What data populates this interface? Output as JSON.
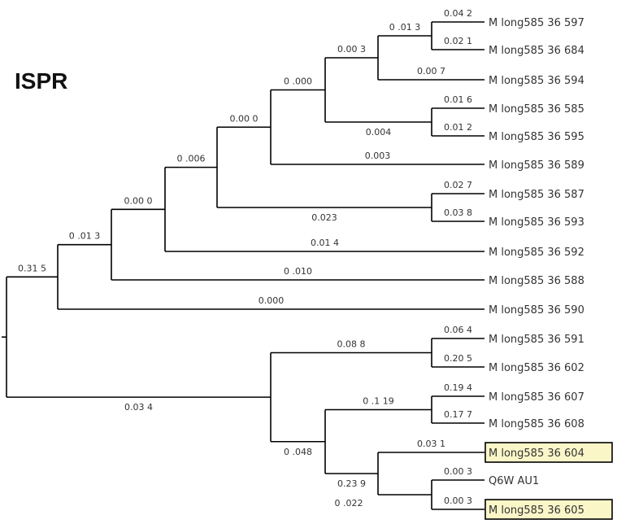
{
  "title": "ISPR",
  "colors": {
    "branch": "#000000",
    "highlight_fill": "#fbf6c8",
    "text": "#333333"
  },
  "leaves": [
    {
      "id": "L1",
      "label": "M long585 36 597"
    },
    {
      "id": "L2",
      "label": "M long585 36 684"
    },
    {
      "id": "L3",
      "label": "M long585 36 594"
    },
    {
      "id": "L4",
      "label": "M long585 36 585"
    },
    {
      "id": "L5",
      "label": "M long585 36 595"
    },
    {
      "id": "L6",
      "label": "M long585 36 589"
    },
    {
      "id": "L7",
      "label": "M long585 36 587"
    },
    {
      "id": "L8",
      "label": "M long585 36 593"
    },
    {
      "id": "L9",
      "label": "M long585 36 592"
    },
    {
      "id": "L10",
      "label": "M long585 36 588"
    },
    {
      "id": "L11",
      "label": "M long585 36 590"
    },
    {
      "id": "L12",
      "label": "M long585 36 591"
    },
    {
      "id": "L13",
      "label": "M long585 36 602"
    },
    {
      "id": "L14",
      "label": "M long585 36 607"
    },
    {
      "id": "L15",
      "label": "M long585 36 608"
    },
    {
      "id": "L16",
      "label": "M long585 36 604",
      "highlighted": true
    },
    {
      "id": "L17",
      "label": "Q6W AU1"
    },
    {
      "id": "L18",
      "label": "M long585 36 605",
      "highlighted": true
    }
  ],
  "branch_lengths": {
    "L1": "0.04 2",
    "L2": "0.02 1",
    "N_L1L2": "0 .01 3",
    "L3": "0.00 7",
    "N_L1L3": "0.00 3",
    "L4": "0.01 6",
    "L5": "0.01 2",
    "N_L4L5": "0.004",
    "N_L1L5": "0 .000",
    "L6": "0.003",
    "N_L1L6": "0.00 0",
    "L7": "0.02 7",
    "L8": "0.03 8",
    "N_L7L8": "0.023",
    "N_L1L8": "0 .006",
    "L9": "0.01 4",
    "N_L1L9": "0.00 0",
    "L10": "0 .010",
    "N_L1L10": "0 .01 3",
    "L11": "0.000",
    "N_L1L11": "0.31 5",
    "L12": "0.06 4",
    "L13": "0.20 5",
    "N_L12L13": "0.08 8",
    "L14": "0.19 4",
    "L15": "0.17 7",
    "N_L14L15": "0 .1 19",
    "L16": "0.03 1",
    "L17": "0.00 3",
    "L18": "0.00 3",
    "N_L17L18": "0 .022",
    "N_L16L18": "0.23 9",
    "N_L14L18": "0 .048",
    "N_L12L18": "0.03 4"
  }
}
